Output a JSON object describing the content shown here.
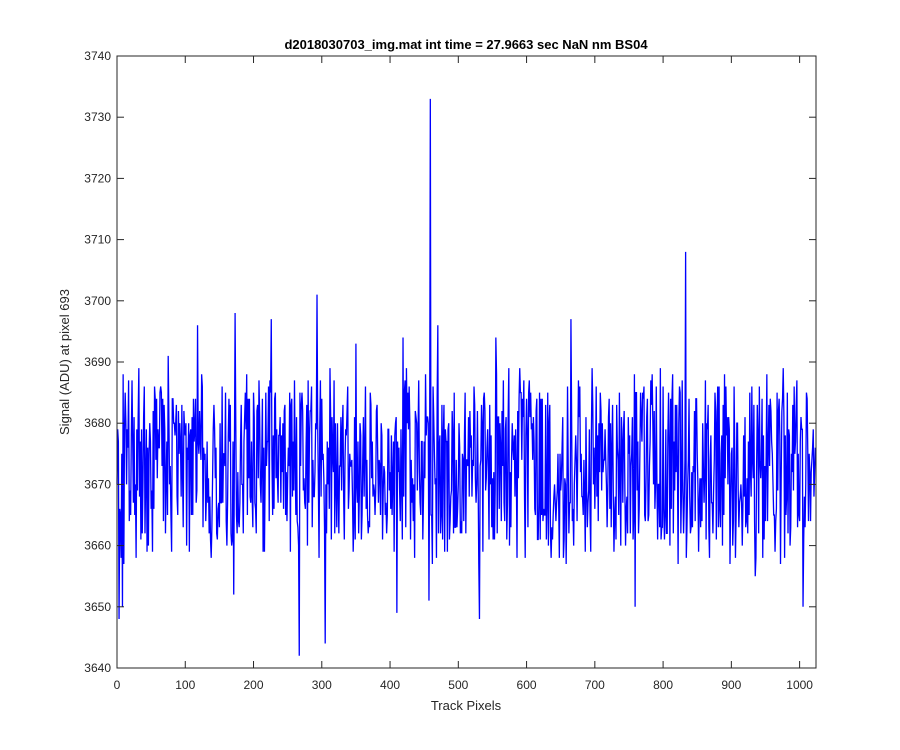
{
  "chart_data": {
    "type": "line",
    "title": "d2018030703_img.mat int time = 27.9663 sec  NaN nm BS04",
    "xlabel": "Track Pixels",
    "ylabel": "Signal (ADU) at pixel 693",
    "xlim": [
      0,
      1024
    ],
    "ylim": [
      3640,
      3740
    ],
    "xticks": [
      0,
      100,
      200,
      300,
      400,
      500,
      600,
      700,
      800,
      900,
      1000
    ],
    "yticks": [
      3640,
      3650,
      3660,
      3670,
      3680,
      3690,
      3700,
      3710,
      3720,
      3730,
      3740
    ],
    "grid": false,
    "box": true,
    "series": [
      {
        "color": "#0000ff",
        "n_points": 1024,
        "approx_mean": 3673,
        "noise_band": [
          3657,
          3689
        ],
        "notable_points": [
          {
            "x": 0,
            "y": 3670
          },
          {
            "x": 3,
            "y": 3648
          },
          {
            "x": 8,
            "y": 3650
          },
          {
            "x": 9,
            "y": 3688
          },
          {
            "x": 17,
            "y": 3687
          },
          {
            "x": 32,
            "y": 3689
          },
          {
            "x": 75,
            "y": 3691
          },
          {
            "x": 118,
            "y": 3696
          },
          {
            "x": 171,
            "y": 3652
          },
          {
            "x": 173,
            "y": 3698
          },
          {
            "x": 226,
            "y": 3697
          },
          {
            "x": 267,
            "y": 3642
          },
          {
            "x": 293,
            "y": 3701
          },
          {
            "x": 305,
            "y": 3644
          },
          {
            "x": 350,
            "y": 3693
          },
          {
            "x": 410,
            "y": 3649
          },
          {
            "x": 419,
            "y": 3694
          },
          {
            "x": 457,
            "y": 3651
          },
          {
            "x": 459,
            "y": 3733
          },
          {
            "x": 470,
            "y": 3696
          },
          {
            "x": 531,
            "y": 3648
          },
          {
            "x": 555,
            "y": 3694
          },
          {
            "x": 665,
            "y": 3697
          },
          {
            "x": 759,
            "y": 3650
          },
          {
            "x": 833,
            "y": 3708
          },
          {
            "x": 935,
            "y": 3655
          },
          {
            "x": 1005,
            "y": 3650
          },
          {
            "x": 1016,
            "y": 3664
          },
          {
            "x": 1023,
            "y": 3676
          }
        ]
      }
    ]
  }
}
